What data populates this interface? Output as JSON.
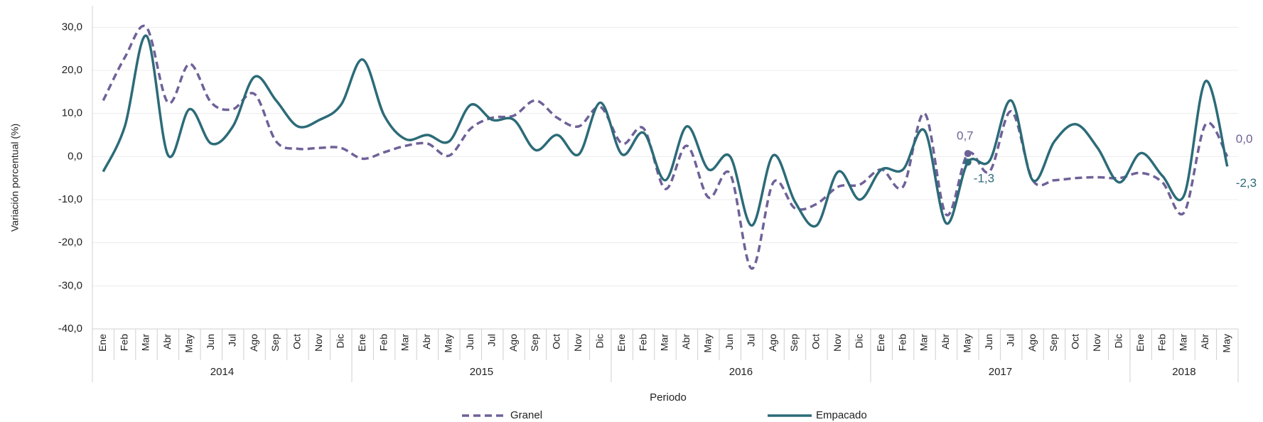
{
  "chart_data": {
    "type": "line",
    "y_label": "Variación porcentual (%)",
    "x_label": "Periodo",
    "categories": [
      "Ene",
      "Feb",
      "Mar",
      "Abr",
      "May",
      "Jun",
      "Jul",
      "Ago",
      "Sep",
      "Oct",
      "Nov",
      "Dic",
      "Ene",
      "Feb",
      "Mar",
      "Abr",
      "May",
      "Jun",
      "Jul",
      "Ago",
      "Sep",
      "Oct",
      "Nov",
      "Dic",
      "Ene",
      "Feb",
      "Mar",
      "Abr",
      "May",
      "Jun",
      "Jul",
      "Ago",
      "Sep",
      "Oct",
      "Nov",
      "Dic",
      "Ene",
      "Feb",
      "Mar",
      "Abr",
      "May",
      "Jun",
      "Jul",
      "Ago",
      "Sep",
      "Oct",
      "Nov",
      "Dic",
      "Ene",
      "Feb",
      "Mar",
      "Abr",
      "May"
    ],
    "groups": [
      "2014",
      "2015",
      "2016",
      "2017",
      "2018"
    ],
    "series": [
      {
        "name": "Granel",
        "color": "#6f6198",
        "dash": true,
        "values": [
          13,
          23,
          30,
          12.5,
          21.5,
          12.5,
          11,
          14.5,
          3.5,
          1.8,
          2,
          2,
          -0.5,
          1,
          2.5,
          3,
          0.2,
          6.5,
          9,
          9.5,
          13,
          9,
          7,
          11.5,
          3,
          6.5,
          -7.5,
          2.5,
          -9.5,
          -4,
          -26,
          -6,
          -12,
          -11,
          -7,
          -6.5,
          -3,
          -7,
          10,
          -13.5,
          0.7,
          -3.5,
          10.5,
          -5.5,
          -5.5,
          -5,
          -4.8,
          -5,
          -3.8,
          -6,
          -13,
          7.5,
          0.0
        ],
        "value_labels": [
          null,
          null,
          null,
          null,
          null,
          null,
          null,
          null,
          null,
          null,
          null,
          null,
          null,
          null,
          null,
          null,
          null,
          null,
          null,
          null,
          null,
          null,
          null,
          null,
          null,
          null,
          null,
          null,
          null,
          null,
          null,
          null,
          null,
          null,
          null,
          null,
          null,
          null,
          null,
          null,
          "0,7",
          null,
          null,
          null,
          null,
          null,
          null,
          null,
          null,
          null,
          null,
          null,
          "0,0"
        ]
      },
      {
        "name": "Empacado",
        "color": "#2c6b78",
        "dash": false,
        "values": [
          -3.5,
          7,
          28,
          0.3,
          11,
          3,
          7,
          18.5,
          13,
          7,
          8.5,
          12,
          22.5,
          9.5,
          4,
          5,
          3.5,
          12,
          8.5,
          8.5,
          1.5,
          5,
          0.5,
          12.5,
          0.5,
          5.5,
          -5.5,
          7,
          -3,
          0,
          -16,
          0.3,
          -10.5,
          -16,
          -3.5,
          -10,
          -3,
          -3,
          6,
          -15.5,
          -1.3,
          -1,
          13,
          -5.5,
          3.5,
          7.5,
          2,
          -6,
          0.8,
          -4.5,
          -9,
          17.5,
          -2.3
        ],
        "value_labels": [
          null,
          null,
          null,
          null,
          null,
          null,
          null,
          null,
          null,
          null,
          null,
          null,
          null,
          null,
          null,
          null,
          null,
          null,
          null,
          null,
          null,
          null,
          null,
          null,
          null,
          null,
          null,
          null,
          null,
          null,
          null,
          null,
          null,
          null,
          null,
          null,
          null,
          null,
          null,
          null,
          "-1,3",
          null,
          null,
          null,
          null,
          null,
          null,
          null,
          null,
          null,
          null,
          null,
          "-2,3"
        ]
      }
    ],
    "ylim": [
      -40,
      35
    ],
    "yticks": [
      {
        "value": -40,
        "label": "-40,0"
      },
      {
        "value": -30,
        "label": "-30,0"
      },
      {
        "value": -20,
        "label": "-20,0"
      },
      {
        "value": -10,
        "label": "-10,0"
      },
      {
        "value": 0,
        "label": "0,0"
      },
      {
        "value": 10,
        "label": "10,0"
      },
      {
        "value": 20,
        "label": "20,0"
      },
      {
        "value": 30,
        "label": "30,0"
      }
    ],
    "grid": true,
    "legend": "bottom"
  }
}
